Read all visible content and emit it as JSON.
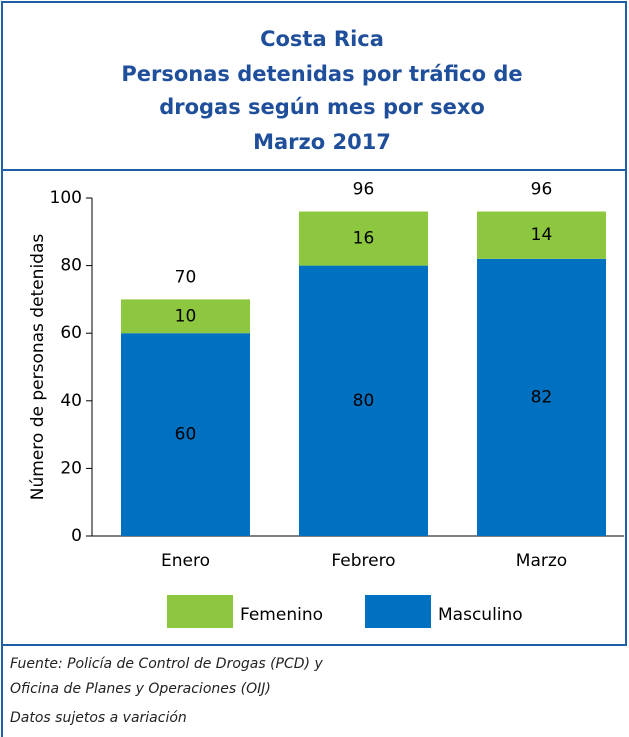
{
  "chart_data": {
    "type": "stacked_bar",
    "title": [
      "Costa Rica",
      "Personas detenidas  por tráfico de",
      "drogas según mes por sexo",
      "Marzo  2017"
    ],
    "ylabel": "Número de personas detenidas",
    "categories": [
      "Enero",
      "Febrero",
      "Marzo"
    ],
    "series": [
      {
        "name": "Femenino",
        "color": "#8dc63f",
        "values": [
          10,
          16,
          14
        ]
      },
      {
        "name": "Masculino",
        "color": "#0070c0",
        "values": [
          60,
          80,
          82
        ]
      }
    ],
    "totals": [
      70,
      96,
      96
    ],
    "ylim": [
      0,
      100
    ],
    "yticks": [
      0,
      20,
      40,
      60,
      80,
      100
    ],
    "source": [
      "Fuente: Policía de Control de Drogas (PCD) y",
      "Oficina de Planes y Operaciones (OIJ)",
      "Datos sujetos a variación"
    ]
  }
}
